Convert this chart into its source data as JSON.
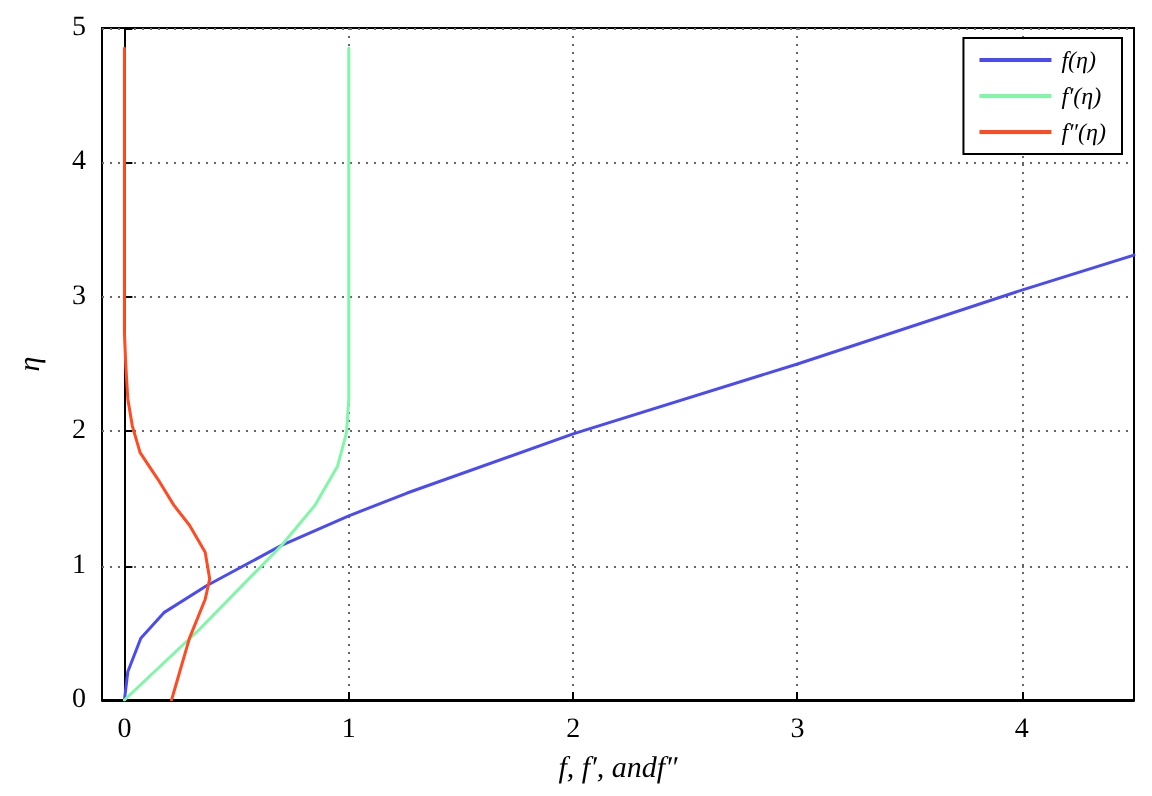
{
  "chart_data": {
    "type": "line",
    "xlabel": "f, f′, andf″",
    "ylabel": "η",
    "xlim": [
      -0.1,
      4.5
    ],
    "ylim": [
      0,
      5
    ],
    "xticks": [
      0,
      1,
      2,
      3,
      4
    ],
    "yticks": [
      0,
      1,
      2,
      3,
      4,
      5
    ],
    "grid": true,
    "legend": "top right",
    "line_style": "solid",
    "marker": "none",
    "series": [
      {
        "name": "f(η)",
        "color": "#4b4bf5",
        "x": [
          0,
          0.015,
          0.073,
          0.176,
          0.366,
          0.7,
          1.0,
          1.26,
          2.0,
          3.0,
          4.0,
          4.5
        ],
        "values": [
          0,
          0.21,
          0.46,
          0.65,
          0.85,
          1.15,
          1.37,
          1.54,
          1.98,
          2.5,
          3.05,
          3.31
        ]
      },
      {
        "name": "f′(η)",
        "color": "#80f7a6",
        "x": [
          0,
          0.337,
          0.7,
          0.85,
          0.95,
          0.99,
          1.0,
          1.0
        ],
        "values": [
          0,
          0.53,
          1.15,
          1.45,
          1.74,
          1.99,
          2.24,
          4.85
        ]
      },
      {
        "name": "f″(η)",
        "color": "#ff4a22",
        "x": [
          0.21,
          0.29,
          0.36,
          0.38,
          0.36,
          0.29,
          0.22,
          0.15,
          0.07,
          0.035,
          0.015,
          0.006,
          0,
          0
        ],
        "values": [
          0,
          0.46,
          0.75,
          0.9,
          1.1,
          1.3,
          1.45,
          1.64,
          1.84,
          2.04,
          2.24,
          2.49,
          2.73,
          4.85
        ]
      }
    ]
  }
}
